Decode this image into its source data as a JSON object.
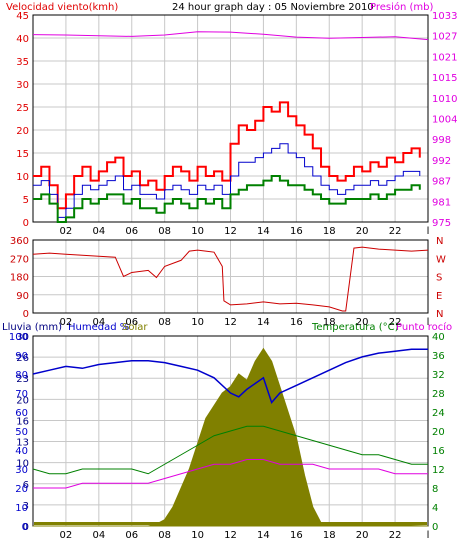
{
  "header": {
    "wind_label": "Velocidad viento(kmh)",
    "title": "24 hour graph day : 05 Noviembre 2010",
    "pressure_label": "Presión (mb)",
    "rain_label": "Lluvia (mm)",
    "humidity_label": "Humedad %",
    "solar_label": "Solar",
    "temp_label": "Temperatura (°C)",
    "dew_label": "Punto rocío"
  },
  "colors": {
    "wind": "#e00000",
    "gust": "#ff0000",
    "avg_wind": "#0000cc",
    "wind_low": "#008000",
    "pressure": "#e000e0",
    "direction": "#cc0000",
    "humidity": "#0000cc",
    "solar": "#808000",
    "temperature": "#008000",
    "dewpoint": "#e000e0",
    "grid": "#c8c8c8",
    "frame": "#000000"
  },
  "chart_data": [
    {
      "type": "line",
      "panel": "wind_pressure",
      "x_ticks": [
        "02",
        "04",
        "06",
        "08",
        "10",
        "12",
        "14",
        "16",
        "18",
        "20",
        "22",
        "l"
      ],
      "y_left_ticks": [
        "0",
        "5",
        "10",
        "15",
        "20",
        "25",
        "30",
        "35",
        "40",
        "45"
      ],
      "y_left_range": [
        0,
        45
      ],
      "y_right_ticks": [
        "975",
        "981",
        "987",
        "992",
        "998",
        "1004",
        "1010",
        "1015",
        "1021",
        "1027",
        "1033"
      ],
      "y_right_range": [
        975,
        1033
      ],
      "x_range": [
        0,
        24
      ],
      "series": [
        {
          "role": "gust",
          "x": [
            0,
            0.5,
            1,
            1.5,
            2,
            2.5,
            3,
            3.5,
            4,
            4.5,
            5,
            5.5,
            6,
            6.5,
            7,
            7.5,
            8,
            8.5,
            9,
            9.5,
            10,
            10.5,
            11,
            11.5,
            12,
            12.5,
            13,
            13.5,
            14,
            14.5,
            15,
            15.5,
            16,
            16.5,
            17,
            17.5,
            18,
            18.5,
            19,
            19.5,
            20,
            20.5,
            21,
            21.5,
            22,
            22.5,
            23,
            23.5
          ],
          "y": [
            10,
            12,
            8,
            3,
            6,
            10,
            12,
            9,
            11,
            13,
            14,
            10,
            11,
            8,
            9,
            7,
            10,
            12,
            11,
            9,
            12,
            10,
            11,
            9,
            17,
            21,
            20,
            22,
            25,
            24,
            26,
            23,
            21,
            19,
            16,
            12,
            10,
            9,
            10,
            12,
            11,
            13,
            12,
            14,
            13,
            15,
            16,
            14
          ]
        },
        {
          "role": "avg_wind",
          "x": [
            0,
            0.5,
            1,
            1.5,
            2,
            2.5,
            3,
            3.5,
            4,
            4.5,
            5,
            5.5,
            6,
            6.5,
            7,
            7.5,
            8,
            8.5,
            9,
            9.5,
            10,
            10.5,
            11,
            11.5,
            12,
            12.5,
            13,
            13.5,
            14,
            14.5,
            15,
            15.5,
            16,
            16.5,
            17,
            17.5,
            18,
            18.5,
            19,
            19.5,
            20,
            20.5,
            21,
            21.5,
            22,
            22.5,
            23,
            23.5
          ],
          "y": [
            8,
            9,
            6,
            1,
            3,
            6,
            8,
            7,
            8,
            9,
            10,
            7,
            8,
            6,
            6,
            5,
            7,
            8,
            7,
            6,
            8,
            7,
            8,
            6,
            10,
            13,
            13,
            14,
            15,
            16,
            17,
            15,
            14,
            12,
            10,
            8,
            7,
            6,
            7,
            8,
            8,
            9,
            8,
            9,
            10,
            11,
            11,
            10
          ]
        },
        {
          "role": "wind_low",
          "x": [
            0,
            0.5,
            1,
            1.5,
            2,
            2.5,
            3,
            3.5,
            4,
            4.5,
            5,
            5.5,
            6,
            6.5,
            7,
            7.5,
            8,
            8.5,
            9,
            9.5,
            10,
            10.5,
            11,
            11.5,
            12,
            12.5,
            13,
            13.5,
            14,
            14.5,
            15,
            15.5,
            16,
            16.5,
            17,
            17.5,
            18,
            18.5,
            19,
            19.5,
            20,
            20.5,
            21,
            21.5,
            22,
            22.5,
            23,
            23.5
          ],
          "y": [
            5,
            6,
            4,
            0,
            1,
            3,
            5,
            4,
            5,
            6,
            6,
            4,
            5,
            3,
            3,
            2,
            4,
            5,
            4,
            3,
            5,
            4,
            5,
            3,
            6,
            7,
            8,
            8,
            9,
            10,
            9,
            8,
            8,
            7,
            6,
            5,
            4,
            4,
            5,
            5,
            5,
            6,
            5,
            6,
            7,
            7,
            8,
            7
          ]
        },
        {
          "role": "pressure",
          "x": [
            0,
            2,
            4,
            6,
            8,
            10,
            12,
            14,
            16,
            18,
            20,
            22,
            24
          ],
          "y": [
            1027.5,
            1027.4,
            1027.2,
            1027.0,
            1027.4,
            1028.3,
            1028.2,
            1027.6,
            1026.8,
            1026.5,
            1026.7,
            1026.9,
            1026.1
          ]
        }
      ]
    },
    {
      "type": "line",
      "panel": "wind_direction",
      "x_ticks": [
        "02",
        "04",
        "06",
        "08",
        "10",
        "12",
        "14",
        "16",
        "18",
        "20",
        "22",
        "l"
      ],
      "y_left_ticks": [
        "0",
        "90",
        "180",
        "270",
        "360"
      ],
      "y_left_range": [
        0,
        360
      ],
      "y_right_ticks": [
        "N",
        "E",
        "S",
        "W",
        "N"
      ],
      "x_range": [
        0,
        24
      ],
      "series": [
        {
          "role": "direction",
          "x": [
            0,
            1,
            2,
            3,
            4,
            5,
            5.5,
            6,
            7,
            7.5,
            8,
            9,
            9.5,
            10,
            10.5,
            11,
            11.5,
            11.6,
            12,
            13,
            14,
            15,
            16,
            17,
            18,
            18.8,
            19,
            19.5,
            20,
            21,
            22,
            23,
            24
          ],
          "y": [
            290,
            295,
            290,
            285,
            280,
            275,
            180,
            200,
            210,
            175,
            230,
            260,
            305,
            310,
            305,
            300,
            230,
            60,
            40,
            45,
            55,
            45,
            48,
            40,
            30,
            10,
            10,
            320,
            325,
            315,
            310,
            305,
            310
          ]
        }
      ]
    },
    {
      "type": "line",
      "panel": "rain_humidity_solar_temp",
      "x_ticks": [
        "02",
        "04",
        "06",
        "08",
        "10",
        "12",
        "14",
        "16",
        "18",
        "20",
        "22",
        "l"
      ],
      "y_left_ticks": [
        "0",
        "3",
        "6",
        "10",
        "13",
        "16",
        "20",
        "23",
        "26",
        "30"
      ],
      "y_left_range": [
        0,
        30
      ],
      "y_humidity_ticks": [
        "0",
        "10",
        "20",
        "30",
        "40",
        "50",
        "60",
        "70",
        "80",
        "90",
        "100"
      ],
      "y_humidity_range": [
        0,
        100
      ],
      "y_right_ticks": [
        "0",
        "4",
        "8",
        "12",
        "16",
        "20",
        "24",
        "28",
        "32",
        "36",
        "40"
      ],
      "y_right_range": [
        0,
        40
      ],
      "x_range": [
        0,
        24
      ],
      "series": [
        {
          "role": "rain",
          "x": [
            0,
            24
          ],
          "y": [
            0,
            0
          ]
        },
        {
          "role": "humidity",
          "x": [
            0,
            1,
            2,
            3,
            4,
            5,
            6,
            7,
            8,
            9,
            10,
            11,
            12,
            12.5,
            13,
            14,
            14.5,
            15,
            16,
            17,
            18,
            19,
            20,
            21,
            22,
            23,
            24
          ],
          "y": [
            80,
            82,
            84,
            83,
            85,
            86,
            87,
            87,
            86,
            84,
            82,
            78,
            70,
            68,
            72,
            78,
            65,
            70,
            74,
            78,
            82,
            86,
            89,
            91,
            92,
            93,
            93
          ]
        },
        {
          "role": "solar",
          "x": [
            0,
            7,
            7.5,
            8,
            8.5,
            9,
            9.5,
            10,
            10.5,
            11,
            11.5,
            12,
            12.5,
            13,
            13.5,
            14,
            14.5,
            15,
            15.5,
            16,
            16.5,
            17,
            17.5,
            24
          ],
          "y": [
            0,
            0,
            0.3,
            1,
            3,
            6,
            9,
            13,
            17,
            19,
            21,
            22,
            24,
            23,
            26,
            28,
            26,
            22,
            18,
            14,
            8,
            3,
            0.5,
            0
          ]
        },
        {
          "role": "temperature",
          "x": [
            0,
            1,
            2,
            3,
            4,
            5,
            6,
            7,
            8,
            9,
            10,
            11,
            12,
            13,
            14,
            15,
            16,
            17,
            18,
            19,
            20,
            21,
            22,
            23,
            24
          ],
          "y": [
            12,
            11,
            11,
            12,
            12,
            12,
            12,
            11,
            13,
            15,
            17,
            19,
            20,
            21,
            21,
            20,
            19,
            18,
            17,
            16,
            15,
            15,
            14,
            13,
            13
          ]
        },
        {
          "role": "dewpoint",
          "x": [
            0,
            1,
            2,
            3,
            4,
            5,
            6,
            7,
            8,
            9,
            10,
            11,
            12,
            13,
            14,
            15,
            16,
            17,
            18,
            19,
            20,
            21,
            22,
            23,
            24
          ],
          "y": [
            8,
            8,
            8,
            9,
            9,
            9,
            9,
            9,
            10,
            11,
            12,
            13,
            13,
            14,
            14,
            13,
            13,
            13,
            12,
            12,
            12,
            12,
            11,
            11,
            11
          ]
        }
      ]
    }
  ]
}
